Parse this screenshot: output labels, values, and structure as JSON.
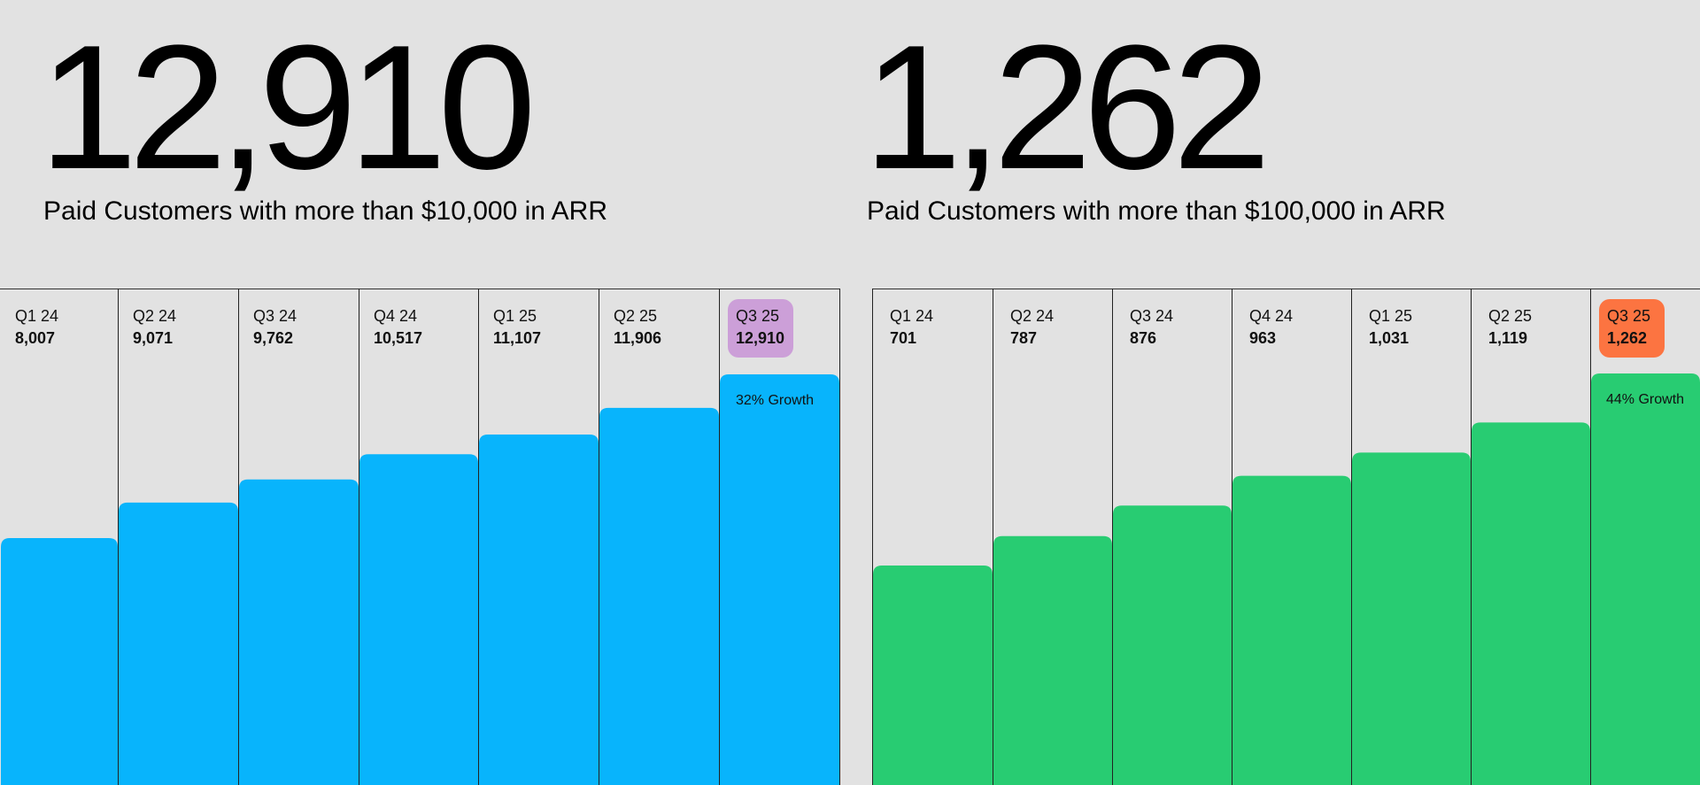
{
  "chart_data": [
    {
      "type": "bar",
      "headline": "12,910",
      "subtitle": "Paid Customers with more than $10,000 in ARR",
      "categories": [
        "Q1 24",
        "Q2 24",
        "Q3 24",
        "Q4 24",
        "Q1 25",
        "Q2 25",
        "Q3 25"
      ],
      "value_labels": [
        "8,007",
        "9,071",
        "9,762",
        "10,517",
        "11,107",
        "11,906",
        "12,910"
      ],
      "values": [
        8007,
        9071,
        9762,
        10517,
        11107,
        11906,
        12910
      ],
      "annotation": "32% Growth",
      "colors": {
        "bar": "#08b4fc",
        "highlight_badge": "#cc9fd8"
      },
      "highlight_index": 6
    },
    {
      "type": "bar",
      "headline": "1,262",
      "subtitle": "Paid Customers with more than $100,000 in ARR",
      "categories": [
        "Q1 24",
        "Q2 24",
        "Q3 24",
        "Q4 24",
        "Q1 25",
        "Q2 25",
        "Q3 25"
      ],
      "value_labels": [
        "701",
        "787",
        "876",
        "963",
        "1,031",
        "1,119",
        "1,262"
      ],
      "values": [
        701,
        787,
        876,
        963,
        1031,
        1119,
        1262
      ],
      "annotation": "44% Growth",
      "colors": {
        "bar": "#28cc72",
        "highlight_badge": "#fc7441"
      },
      "highlight_index": 6
    }
  ]
}
